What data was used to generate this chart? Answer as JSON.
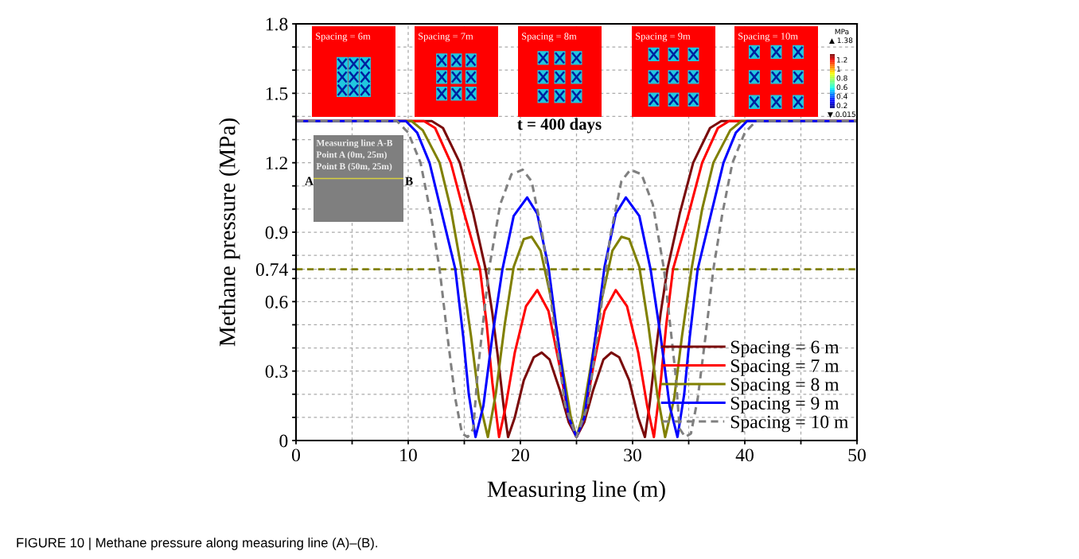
{
  "chart_data": {
    "type": "line",
    "xlabel": "Measuring line (m)",
    "ylabel": "Methane pressure (MPa)",
    "xlim": [
      0,
      50
    ],
    "ylim": [
      0,
      1.8
    ],
    "xticks": [
      0,
      {
        "value": 5,
        "label": null
      },
      10,
      {
        "value": 15,
        "label": null
      },
      20,
      {
        "value": 25,
        "label": null
      },
      30,
      {
        "value": 35,
        "label": null
      },
      40,
      {
        "value": 45,
        "label": null
      },
      50
    ],
    "yticks": [
      0,
      {
        "value": 0.1,
        "label": null
      },
      {
        "value": 0.2,
        "label": null
      },
      0.3,
      {
        "value": 0.4,
        "label": null
      },
      {
        "value": 0.5,
        "label": null
      },
      0.6,
      {
        "value": 0.7,
        "label": null
      },
      0.74,
      {
        "value": 0.8,
        "label": null
      },
      0.9,
      {
        "value": 1.0,
        "label": null
      },
      {
        "value": 1.1,
        "label": null
      },
      1.2,
      {
        "value": 1.3,
        "label": null
      },
      {
        "value": 1.4,
        "label": null
      },
      1.5,
      {
        "value": 1.6,
        "label": null
      },
      {
        "value": 1.7,
        "label": null
      },
      1.8
    ],
    "grid": true,
    "legend": "bottom right",
    "marker": "none",
    "ref_lines": [
      {
        "axis": "y",
        "value": 0.74,
        "color": "#808000",
        "line_style": "dashed"
      }
    ],
    "series": [
      {
        "name": "Spacing = 6 m",
        "color": "#7a0a0a",
        "line_style": "solid",
        "x": [
          0,
          12.1,
          13.1,
          14.6,
          15.8,
          16.9,
          17.5,
          18,
          18.5,
          18.9,
          19.5,
          20.3,
          21.2,
          21.9,
          22.6,
          23.5,
          24.3,
          25,
          25.7,
          26.5,
          27.4,
          28.1,
          28.8,
          29.7,
          30.5,
          31.1,
          31.5,
          32,
          32.5,
          33.1,
          34.2,
          35.4,
          36.9,
          37.9,
          50
        ],
        "values": [
          1.38,
          1.38,
          1.35,
          1.2,
          0.98,
          0.74,
          0.55,
          0.36,
          0.15,
          0.015,
          0.1,
          0.26,
          0.36,
          0.38,
          0.35,
          0.22,
          0.08,
          0.015,
          0.08,
          0.22,
          0.35,
          0.38,
          0.36,
          0.26,
          0.1,
          0.015,
          0.15,
          0.36,
          0.55,
          0.74,
          0.98,
          1.2,
          1.35,
          1.38,
          1.38
        ]
      },
      {
        "name": "Spacing = 7 m",
        "color": "#ff0000",
        "line_style": "solid",
        "x": [
          0,
          11.4,
          12.4,
          13.8,
          15,
          16.4,
          17,
          17.5,
          18.1,
          18.7,
          19.5,
          20.5,
          21.5,
          22.5,
          23.5,
          24.3,
          25,
          25.7,
          26.5,
          27.5,
          28.5,
          29.5,
          30.5,
          31.3,
          31.9,
          32.5,
          33,
          33.6,
          35,
          36.2,
          37.6,
          38.6,
          50
        ],
        "values": [
          1.38,
          1.38,
          1.35,
          1.2,
          0.98,
          0.74,
          0.5,
          0.25,
          0.015,
          0.15,
          0.38,
          0.58,
          0.65,
          0.56,
          0.32,
          0.1,
          0.015,
          0.1,
          0.32,
          0.56,
          0.65,
          0.58,
          0.38,
          0.15,
          0.015,
          0.25,
          0.5,
          0.74,
          0.98,
          1.2,
          1.35,
          1.38,
          1.38
        ]
      },
      {
        "name": "Spacing = 8 m",
        "color": "#808000",
        "line_style": "solid",
        "x": [
          0,
          10.3,
          11.3,
          12.8,
          13.8,
          14.75,
          15.6,
          16.3,
          17.1,
          17.8,
          18.6,
          19.4,
          20.3,
          21,
          21.8,
          22.8,
          23.8,
          24.5,
          25,
          25.5,
          26.2,
          27.2,
          28.2,
          29,
          29.7,
          30.6,
          31.4,
          32.2,
          32.9,
          33.7,
          34.4,
          35.25,
          36.2,
          37.2,
          38.7,
          39.7,
          50
        ],
        "values": [
          1.38,
          1.38,
          1.34,
          1.2,
          1.0,
          0.74,
          0.45,
          0.18,
          0.015,
          0.2,
          0.5,
          0.75,
          0.87,
          0.88,
          0.82,
          0.6,
          0.3,
          0.1,
          0.015,
          0.1,
          0.3,
          0.6,
          0.82,
          0.88,
          0.87,
          0.75,
          0.5,
          0.2,
          0.015,
          0.18,
          0.45,
          0.74,
          1.0,
          1.2,
          1.34,
          1.38,
          1.38
        ]
      },
      {
        "name": "Spacing = 9 m",
        "color": "#0000ff",
        "line_style": "solid",
        "x": [
          0,
          9.8,
          10.8,
          11.9,
          13,
          14.2,
          14.9,
          15.4,
          16,
          16.7,
          17.5,
          18.4,
          19.4,
          20.6,
          21.5,
          22.5,
          23.5,
          24.3,
          25,
          25.7,
          26.5,
          27.5,
          28.5,
          29.4,
          30.6,
          31.6,
          32.5,
          33.3,
          34,
          34.6,
          35.1,
          35.8,
          37,
          38.1,
          39.2,
          40.2,
          50
        ],
        "values": [
          1.38,
          1.38,
          1.33,
          1.2,
          0.98,
          0.74,
          0.45,
          0.2,
          0.015,
          0.15,
          0.45,
          0.74,
          0.97,
          1.05,
          0.98,
          0.75,
          0.38,
          0.1,
          0.015,
          0.1,
          0.38,
          0.75,
          0.98,
          1.05,
          0.97,
          0.74,
          0.45,
          0.15,
          0.015,
          0.2,
          0.45,
          0.74,
          0.98,
          1.2,
          1.33,
          1.38,
          1.38
        ]
      },
      {
        "name": "Spacing = 10 m",
        "color": "#808080",
        "line_style": "dashed",
        "x": [
          0,
          9,
          10,
          11.1,
          12,
          12.8,
          13.5,
          14.2,
          14.8,
          15.3,
          15.8,
          16.2,
          17.2,
          18.2,
          19.2,
          20.2,
          21,
          22,
          23,
          24,
          25,
          26,
          27,
          28,
          29,
          29.8,
          30.8,
          31.8,
          32.8,
          33.8,
          34.2,
          34.7,
          35.2,
          35.8,
          36.5,
          37.2,
          38,
          38.9,
          40,
          41,
          50
        ],
        "values": [
          1.38,
          1.38,
          1.33,
          1.2,
          0.98,
          0.74,
          0.45,
          0.18,
          0.03,
          0.015,
          0.05,
          0.3,
          0.74,
          1.02,
          1.15,
          1.17,
          1.12,
          0.88,
          0.5,
          0.15,
          0.015,
          0.15,
          0.5,
          0.88,
          1.12,
          1.17,
          1.15,
          1.02,
          0.74,
          0.3,
          0.05,
          0.015,
          0.03,
          0.18,
          0.45,
          0.74,
          0.98,
          1.2,
          1.33,
          1.38,
          1.38
        ]
      }
    ],
    "annotations": [
      "Spacing = 6m",
      "Spacing = 7m",
      "Spacing = 8m",
      "Spacing = 9m",
      "Spacing = 10m",
      "MPa",
      "▲ 1.38",
      "1.2",
      "1",
      "0.8",
      "0.6",
      "0.4",
      "0.2",
      "▼ 0.015",
      "t = 400 days",
      "Measuring line A-B",
      "Point A (0m, 25m)",
      "Point B (50m, 25m)",
      "A",
      "B",
      "FIGURE 10 | Methane pressure along measuring line (A)–(B)."
    ]
  }
}
